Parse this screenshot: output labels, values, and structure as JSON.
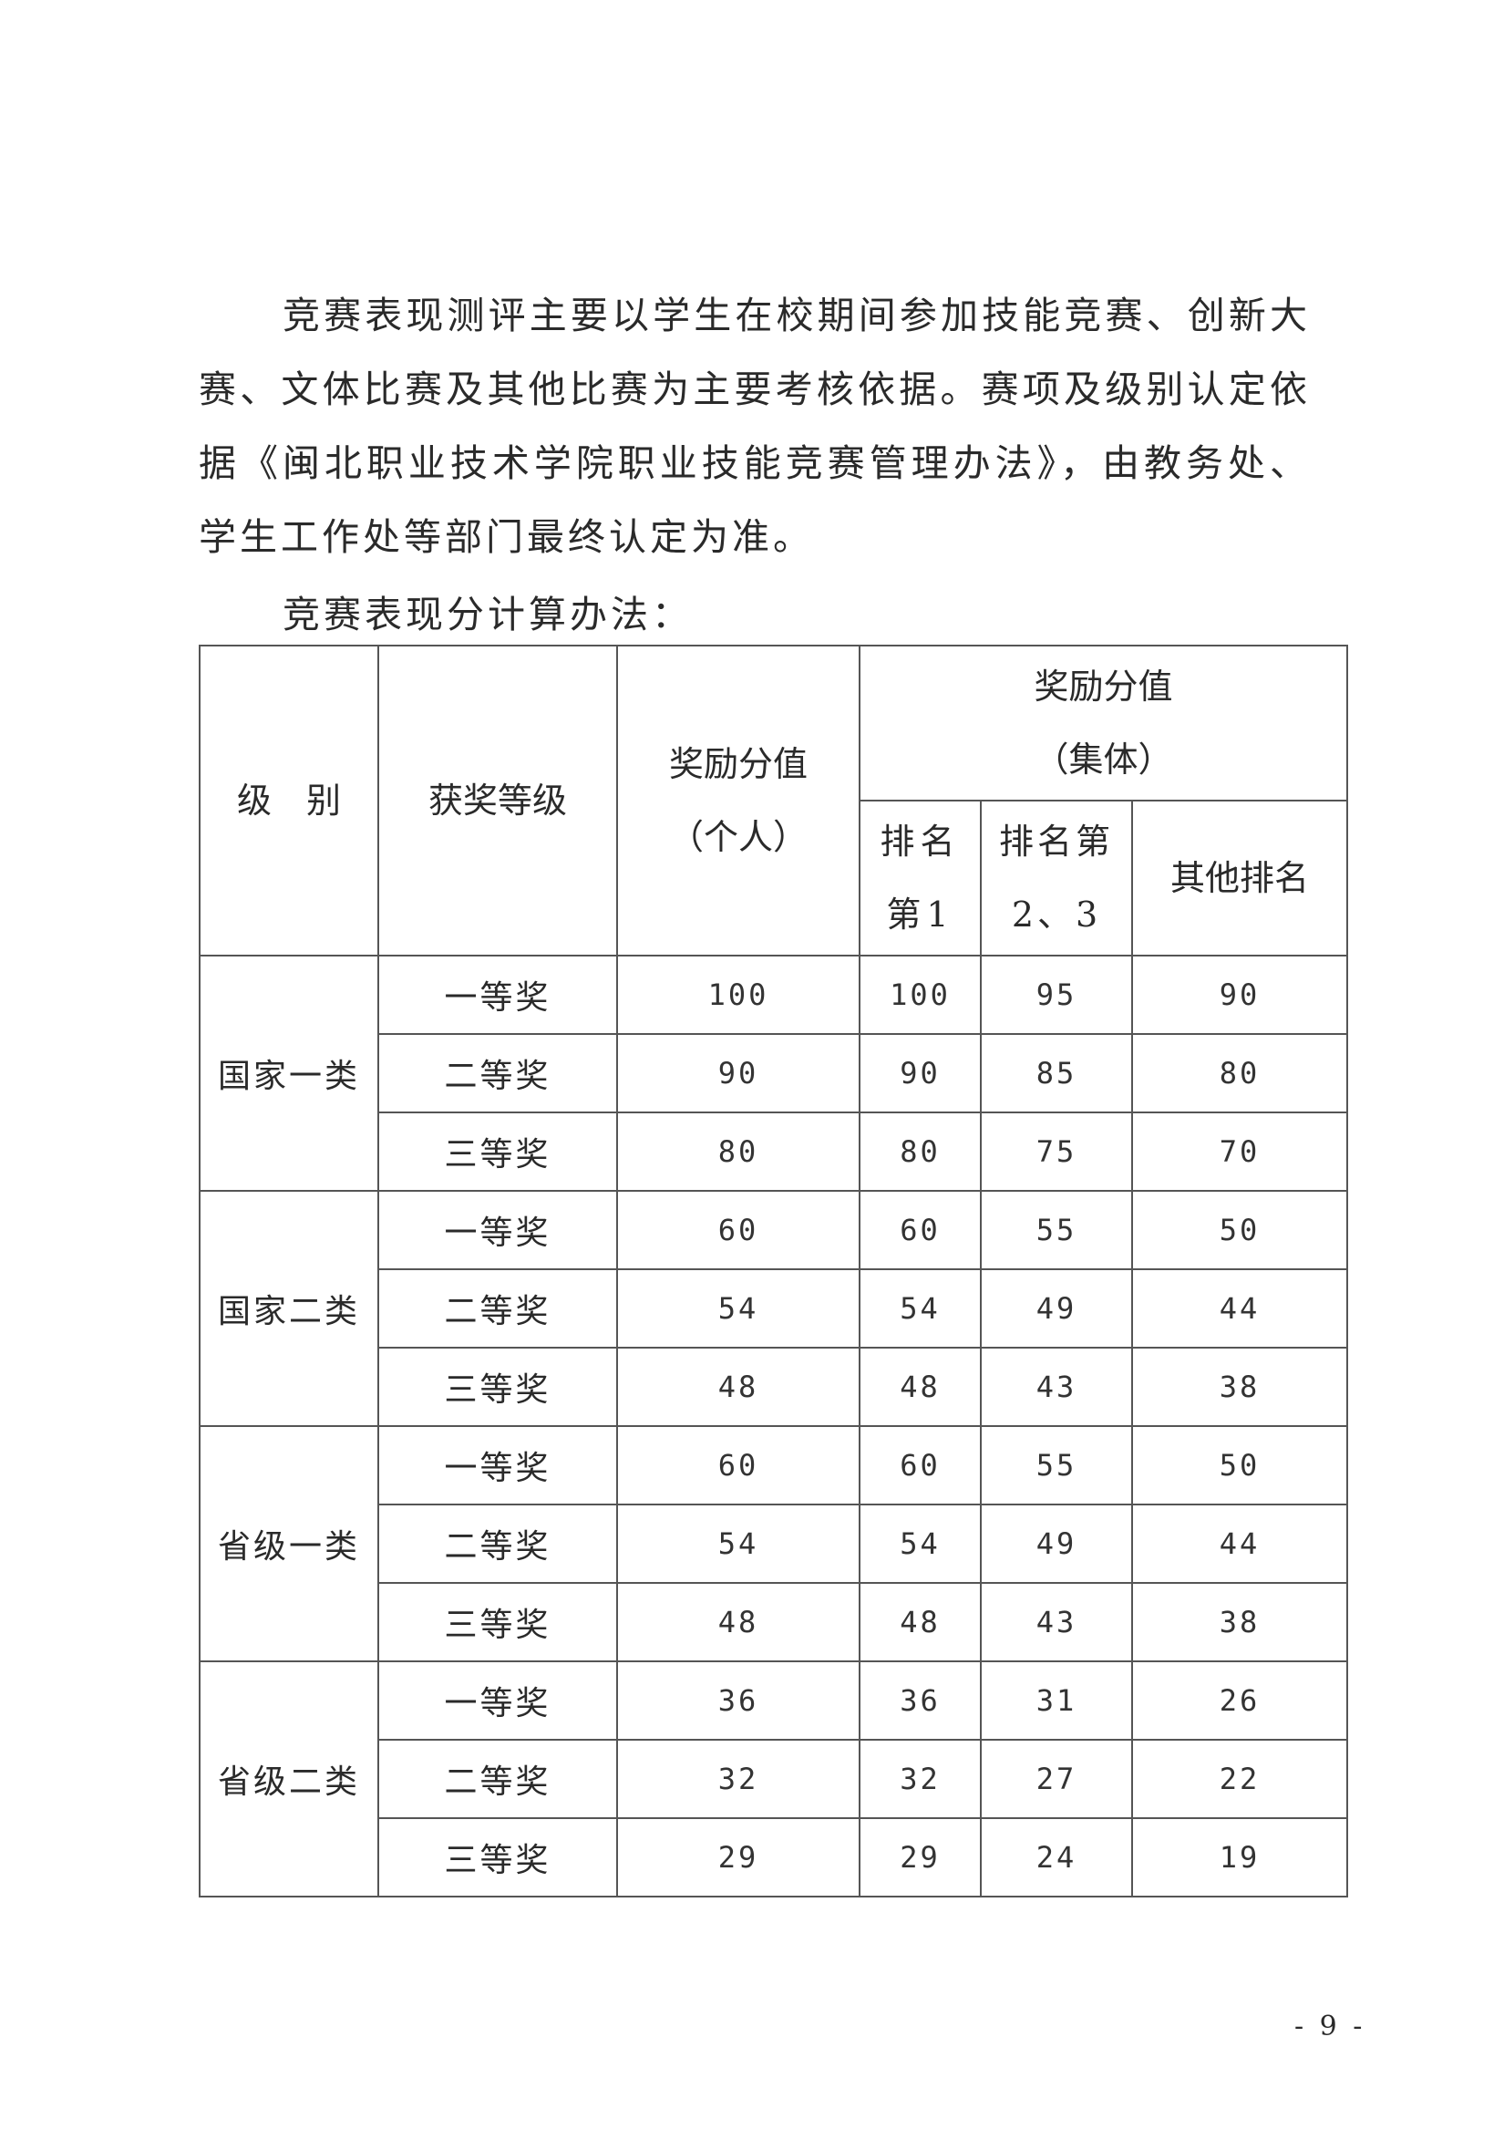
{
  "paragraphs": [
    "竞赛表现测评主要以学生在校期间参加技能竞赛、创新大赛、文体比赛及其他比赛为主要考核依据。赛项及级别认定依据《闽北职业技术学院职业技能竞赛管理办法》，由教务处、学生工作处等部门最终认定为准。",
    "竞赛表现分计算办法："
  ],
  "table": {
    "headers": {
      "level": "级　别",
      "award_grade": "获奖等级",
      "individual_line1": "奖励分值",
      "individual_line2": "（个人）",
      "collective_line1": "奖励分值",
      "collective_line2": "（集体）",
      "rank1": "排名第1",
      "rank2_3": "排名第2、3",
      "other_rank": "其他排名"
    },
    "groups": [
      {
        "level": "国家一类",
        "rows": [
          {
            "grade": "一等奖",
            "individual": "100",
            "rank1": "100",
            "rank2_3": "95",
            "other": "90"
          },
          {
            "grade": "二等奖",
            "individual": "90",
            "rank1": "90",
            "rank2_3": "85",
            "other": "80"
          },
          {
            "grade": "三等奖",
            "individual": "80",
            "rank1": "80",
            "rank2_3": "75",
            "other": "70"
          }
        ]
      },
      {
        "level": "国家二类",
        "rows": [
          {
            "grade": "一等奖",
            "individual": "60",
            "rank1": "60",
            "rank2_3": "55",
            "other": "50"
          },
          {
            "grade": "二等奖",
            "individual": "54",
            "rank1": "54",
            "rank2_3": "49",
            "other": "44"
          },
          {
            "grade": "三等奖",
            "individual": "48",
            "rank1": "48",
            "rank2_3": "43",
            "other": "38"
          }
        ]
      },
      {
        "level": "省级一类",
        "rows": [
          {
            "grade": "一等奖",
            "individual": "60",
            "rank1": "60",
            "rank2_3": "55",
            "other": "50"
          },
          {
            "grade": "二等奖",
            "individual": "54",
            "rank1": "54",
            "rank2_3": "49",
            "other": "44"
          },
          {
            "grade": "三等奖",
            "individual": "48",
            "rank1": "48",
            "rank2_3": "43",
            "other": "38"
          }
        ]
      },
      {
        "level": "省级二类",
        "rows": [
          {
            "grade": "一等奖",
            "individual": "36",
            "rank1": "36",
            "rank2_3": "31",
            "other": "26"
          },
          {
            "grade": "二等奖",
            "individual": "32",
            "rank1": "32",
            "rank2_3": "27",
            "other": "22"
          },
          {
            "grade": "三等奖",
            "individual": "29",
            "rank1": "29",
            "rank2_3": "24",
            "other": "19"
          }
        ]
      }
    ]
  },
  "page_number": "- 9 -"
}
